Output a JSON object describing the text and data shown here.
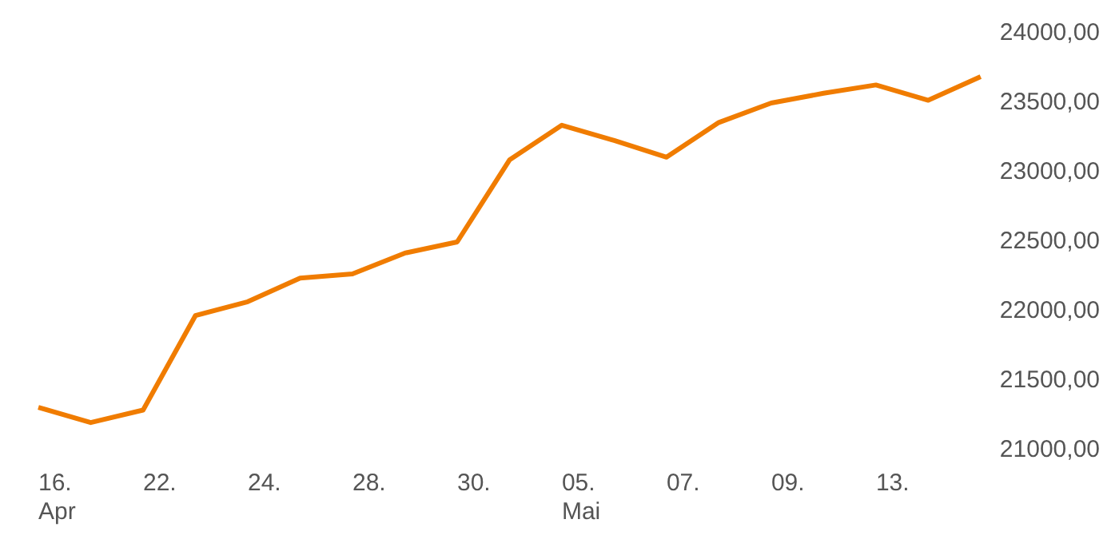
{
  "chart_data": {
    "type": "line",
    "categories": [
      "16. Apr",
      null,
      "22.",
      null,
      "24.",
      null,
      "28.",
      null,
      "30.",
      null,
      "05. Mai",
      null,
      "07.",
      null,
      "09.",
      null,
      "13.",
      null,
      null
    ],
    "series": [
      {
        "color": "#f07c00",
        "values": [
          21310,
          21200,
          21290,
          21970,
          22070,
          22240,
          22270,
          22420,
          22500,
          23090,
          23340,
          23230,
          23110,
          23360,
          23500,
          23570,
          23630,
          23520,
          23690
        ]
      }
    ],
    "ylim": [
      21000,
      24000
    ],
    "yticks": [
      {
        "value": 21000,
        "label": "21000,00"
      },
      {
        "value": 21500,
        "label": "21500,00"
      },
      {
        "value": 22000,
        "label": "22000,00"
      },
      {
        "value": 22500,
        "label": "22500,00"
      },
      {
        "value": 23000,
        "label": "23000,00"
      },
      {
        "value": 23500,
        "label": "23500,00"
      },
      {
        "value": 24000,
        "label": "24000,00"
      }
    ],
    "grid": false,
    "legend": false,
    "marker": "none",
    "line_style": "solid"
  }
}
